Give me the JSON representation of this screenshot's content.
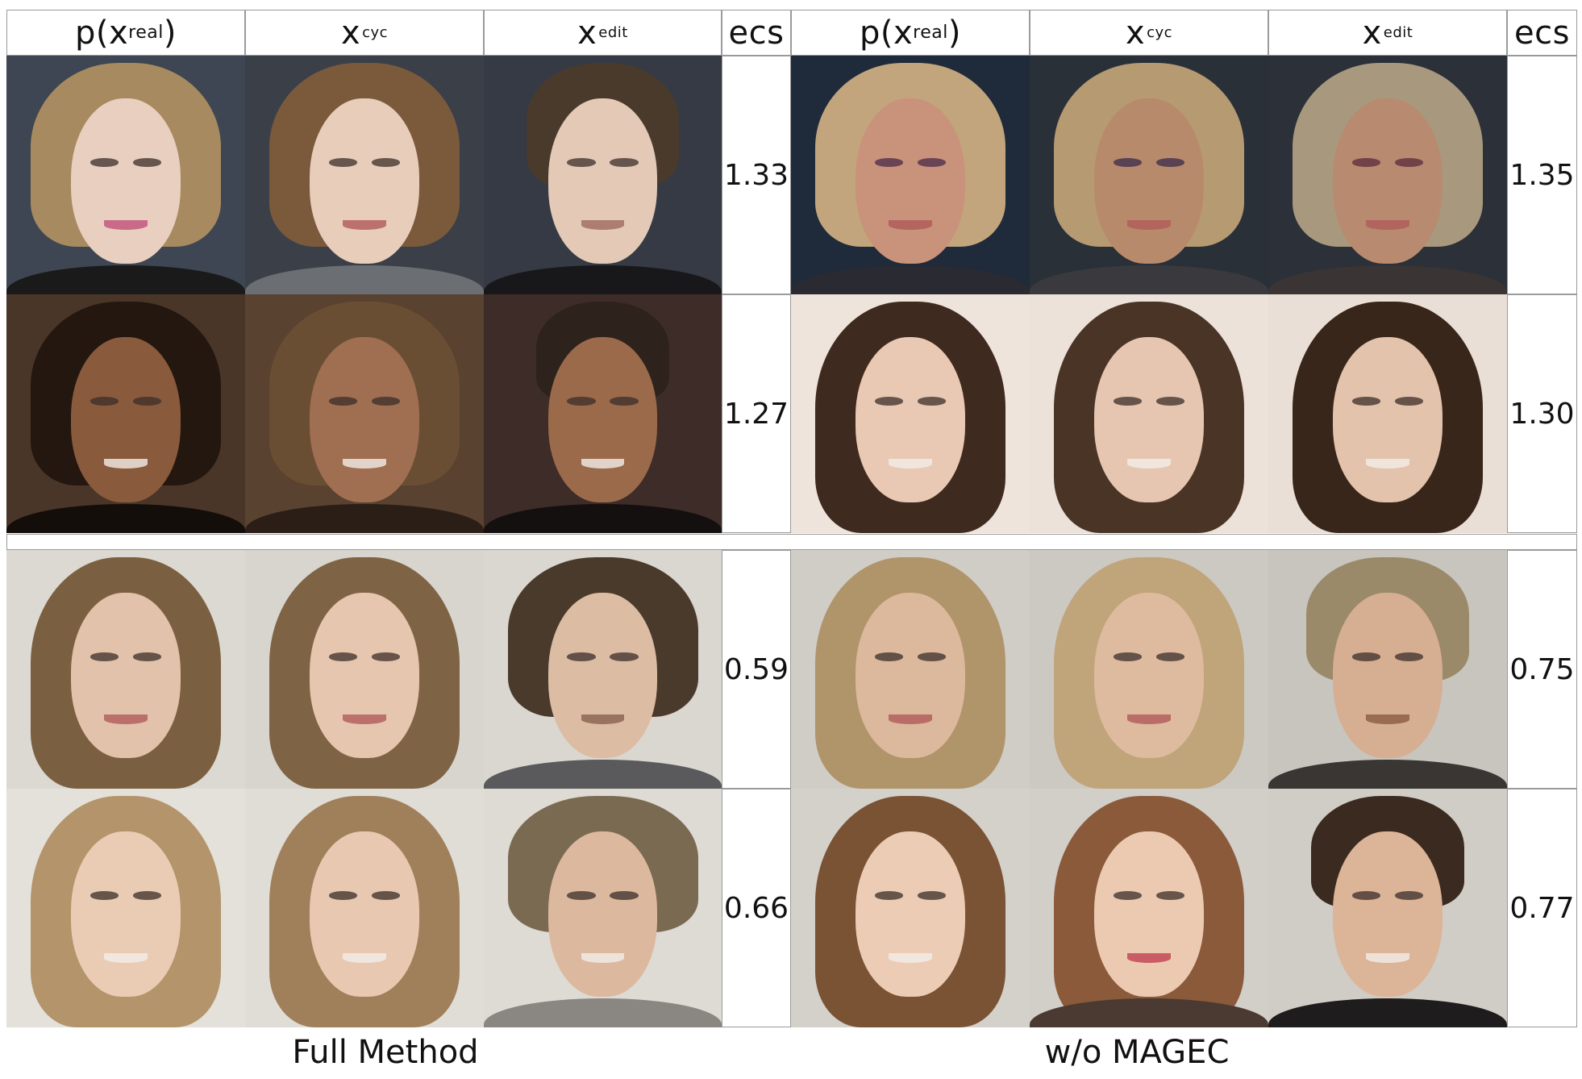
{
  "headers": {
    "left": {
      "real": {
        "main": "p(x",
        "sub": "real",
        "tail": ")"
      },
      "cyc": {
        "main": "x",
        "sub": "cyc"
      },
      "edit": {
        "main": "x",
        "sub": "edit"
      },
      "score": "ecs"
    },
    "right": {
      "real": {
        "main": "p(x",
        "sub": "real",
        "tail": ")"
      },
      "cyc": {
        "main": "x",
        "sub": "cyc"
      },
      "edit": {
        "main": "x",
        "sub": "edit"
      },
      "score": "ecs"
    }
  },
  "scores": {
    "full_method": [
      "1.33",
      "1.27",
      "0.59",
      "0.66"
    ],
    "wo_magec": [
      "1.35",
      "1.30",
      "0.75",
      "0.77"
    ]
  },
  "captions": {
    "left": "Full Method",
    "right": "w/o MAGEC"
  },
  "colors": {
    "border": "#9a9a9a"
  }
}
